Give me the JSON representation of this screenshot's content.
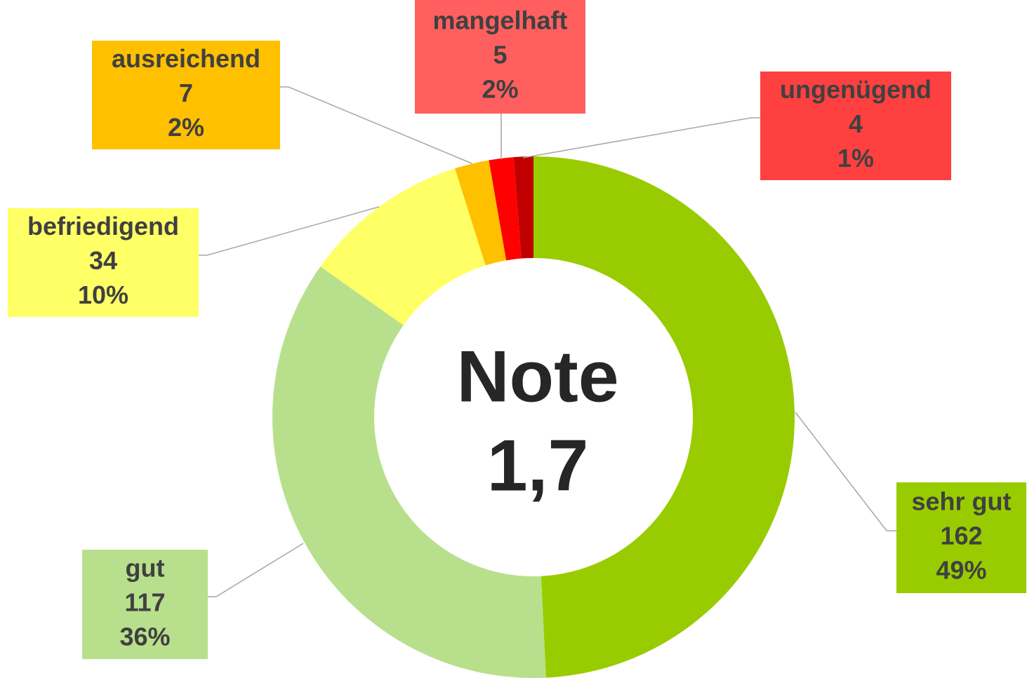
{
  "chart_data": {
    "type": "donut",
    "center_title": "Note",
    "center_value": "1,7",
    "categories": [
      "sehr gut",
      "gut",
      "befriedigend",
      "ausreichend",
      "mangelhaft",
      "ungenügend"
    ],
    "values": [
      162,
      117,
      34,
      7,
      5,
      4
    ],
    "percent_labels": [
      "49%",
      "36%",
      "10%",
      "2%",
      "2%",
      "1%"
    ],
    "colors": [
      "#99cc00",
      "#b8e08c",
      "#ffff66",
      "#ffc000",
      "#ff0000",
      "#c00000"
    ],
    "label_colors": [
      "#99cc00",
      "#b8e08c",
      "#ffff66",
      "#ffc000",
      "#ff5f5f",
      "#ff4040"
    ]
  }
}
